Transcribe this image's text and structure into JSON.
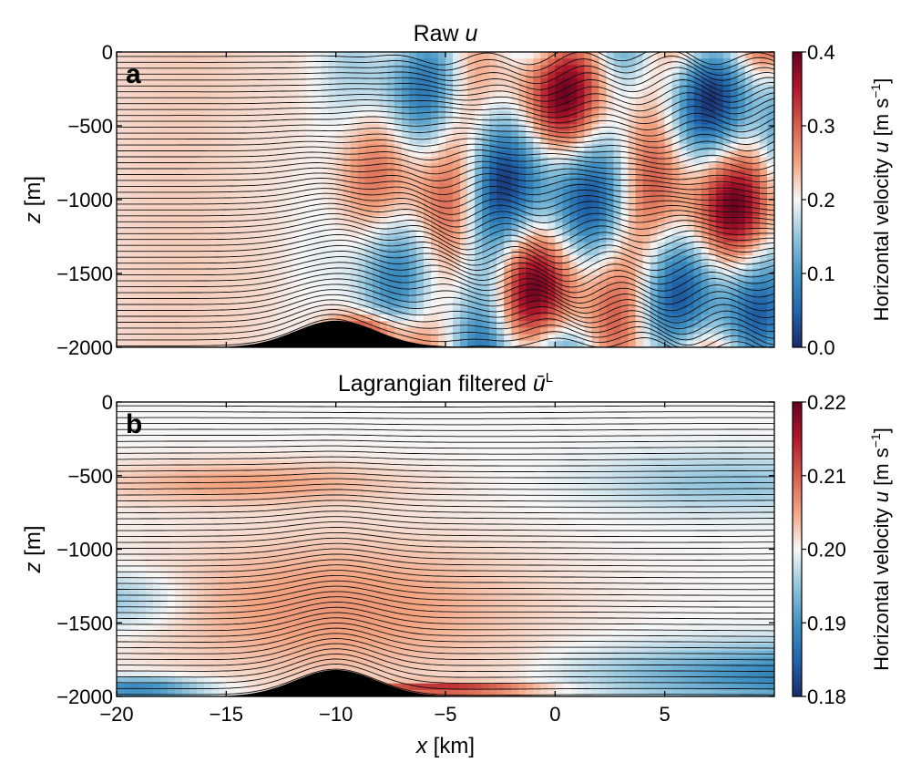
{
  "chart_data": [
    {
      "type": "heatmap",
      "panel_label": "a",
      "title": "Raw u",
      "title_plain": "Raw ",
      "title_var": "u",
      "xlabel_var": "x",
      "xlabel_unit": "[km]",
      "ylabel_var": "z",
      "ylabel_unit": "[m]",
      "xlim": [
        -20,
        10
      ],
      "ylim": [
        -2000,
        0
      ],
      "xticks": [
        -20,
        -15,
        -10,
        -5,
        0,
        5
      ],
      "xtick_labels": [
        "−20",
        "−15",
        "−10",
        "−5",
        "0",
        "5"
      ],
      "yticks": [
        0,
        -500,
        -1000,
        -1500,
        -2000
      ],
      "ytick_labels": [
        "0",
        "−500",
        "−1000",
        "−1500",
        "−2000"
      ],
      "show_xtick_labels": false,
      "colorbar": {
        "label_plain": "Horizontal velocity ",
        "label_var": "u",
        "label_unit": " [m s",
        "label_exp": "−1",
        "label_end": "]",
        "range": [
          0.0,
          0.4
        ],
        "ticks": [
          0.0,
          0.1,
          0.2,
          0.3,
          0.4
        ],
        "tick_labels": [
          "0.0",
          "0.1",
          "0.2",
          "0.3",
          "0.4"
        ],
        "colormap": [
          "#1a2a6c",
          "#2166ac",
          "#4393c3",
          "#92c5de",
          "#f7f7f7",
          "#f4a582",
          "#d6604d",
          "#b2182b",
          "#67001f"
        ]
      },
      "topography": {
        "center_x": -10,
        "height": 180,
        "base": -2000
      },
      "field": "raw"
    },
    {
      "type": "heatmap",
      "panel_label": "b",
      "title": "Lagrangian filtered u-bar^L",
      "title_plain": "Lagrangian filtered ",
      "title_var": "ū",
      "title_sup": "L",
      "xlabel_var": "x",
      "xlabel_unit": "[km]",
      "ylabel_var": "z",
      "ylabel_unit": "[m]",
      "xlim": [
        -20,
        10
      ],
      "ylim": [
        -2000,
        0
      ],
      "xticks": [
        -20,
        -15,
        -10,
        -5,
        0,
        5
      ],
      "xtick_labels": [
        "−20",
        "−15",
        "−10",
        "−5",
        "0",
        "5"
      ],
      "yticks": [
        0,
        -500,
        -1000,
        -1500,
        -2000
      ],
      "ytick_labels": [
        "0",
        "−500",
        "−1000",
        "−1500",
        "−2000"
      ],
      "show_xtick_labels": true,
      "colorbar": {
        "label_plain": "Horizontal velocity ",
        "label_var": "u",
        "label_unit": " [m s",
        "label_exp": "−1",
        "label_end": "]",
        "range": [
          0.18,
          0.22
        ],
        "ticks": [
          0.18,
          0.19,
          0.2,
          0.21,
          0.22
        ],
        "tick_labels": [
          "0.18",
          "0.19",
          "0.20",
          "0.21",
          "0.22"
        ],
        "colormap": [
          "#1a2a6c",
          "#2166ac",
          "#4393c3",
          "#92c5de",
          "#f7f7f7",
          "#f4a582",
          "#d6604d",
          "#b2182b",
          "#67001f"
        ]
      },
      "topography": {
        "center_x": -10,
        "height": 180,
        "base": -2000
      },
      "field": "filtered"
    }
  ]
}
